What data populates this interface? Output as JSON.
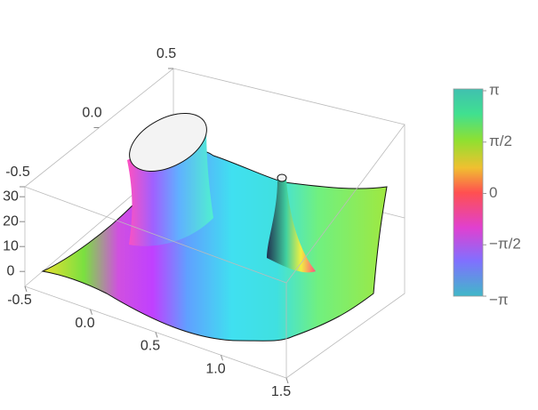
{
  "chart_data": {
    "type": "surface3d",
    "xlim": [
      -0.5,
      1.5
    ],
    "xticks": [
      -0.5,
      {
        "value": 0,
        "label": "0.0"
      },
      0.5,
      {
        "value": 1,
        "label": "1.0"
      },
      1.5
    ],
    "ylim": [
      -0.5,
      0.5
    ],
    "yticks": [
      -0.5,
      {
        "value": 0,
        "label": "0.0"
      },
      0.5
    ],
    "zlim": [
      -6,
      34
    ],
    "zticks": [
      0,
      10,
      20,
      30
    ],
    "colorbar": {
      "lim": [
        -3.1416,
        3.1416
      ],
      "ticks": [
        {
          "value": -3.1416,
          "label": "−π"
        },
        {
          "value": -1.5708,
          "label": "−π/2"
        },
        0,
        {
          "value": 1.5708,
          "label": "π/2"
        },
        {
          "value": 3.1416,
          "label": "π"
        }
      ]
    }
  }
}
